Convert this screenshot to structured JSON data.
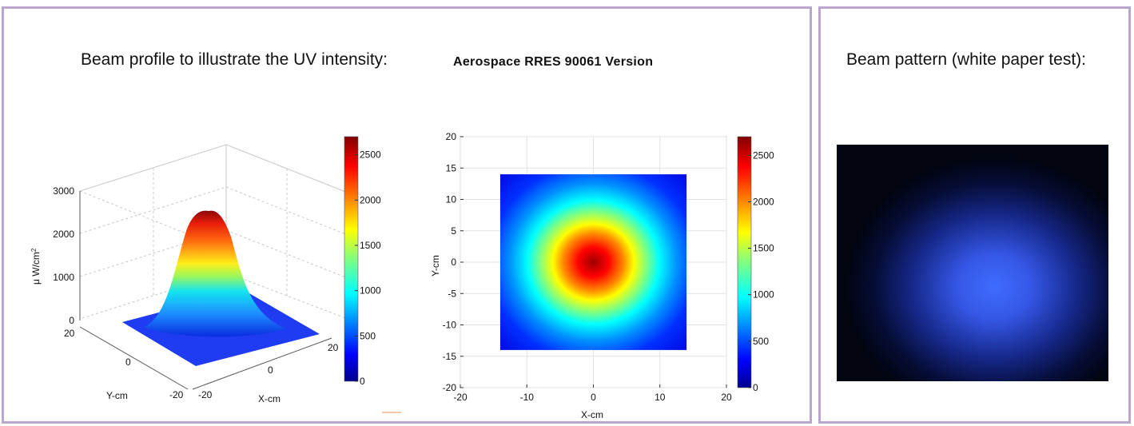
{
  "headings": {
    "left": "Beam profile to illustrate the UV intensity:",
    "center": "Aerospace  RRES  90061  Version",
    "right": "Beam pattern (white paper test):"
  },
  "chart_data": [
    {
      "type": "surface3d",
      "title": "",
      "xlabel": "X-cm",
      "ylabel": "Y-cm",
      "zlabel": "μ W/cm²",
      "x_ticks": [
        "-20",
        "0",
        "20"
      ],
      "y_ticks": [
        "-20",
        "0",
        "20"
      ],
      "z_ticks": [
        "0",
        "1000",
        "2000",
        "3000"
      ],
      "zlim": [
        0,
        3000
      ],
      "peak": 2700,
      "colorbar": {
        "range": [
          0,
          2700
        ],
        "ticks": [
          "0",
          "500",
          "1000",
          "1500",
          "2000",
          "2500"
        ]
      }
    },
    {
      "type": "heatmap",
      "title": "",
      "xlabel": "X-cm",
      "ylabel": "Y-cm",
      "xlim": [
        -20,
        20
      ],
      "ylim": [
        -20,
        20
      ],
      "x_ticks": [
        "-20",
        "-10",
        "0",
        "10",
        "20"
      ],
      "y_ticks": [
        "-20",
        "-15",
        "-10",
        "-5",
        "0",
        "5",
        "10",
        "15",
        "20"
      ],
      "data_extent": {
        "x": [
          -14,
          14
        ],
        "y": [
          -14,
          14
        ]
      },
      "peak": 2700,
      "grid": true,
      "colorbar": {
        "range": [
          0,
          2700
        ],
        "ticks": [
          "0",
          "500",
          "1000",
          "1500",
          "2000",
          "2500"
        ]
      }
    }
  ],
  "colors": {
    "panel_border": "#b9a6cf",
    "jet": [
      "#00008f",
      "#0000ff",
      "#0080ff",
      "#00ffff",
      "#80ff80",
      "#ffff00",
      "#ff8000",
      "#ff0000",
      "#800000"
    ],
    "photo_bg": "#020617",
    "photo_glow": "#3a63f0"
  }
}
